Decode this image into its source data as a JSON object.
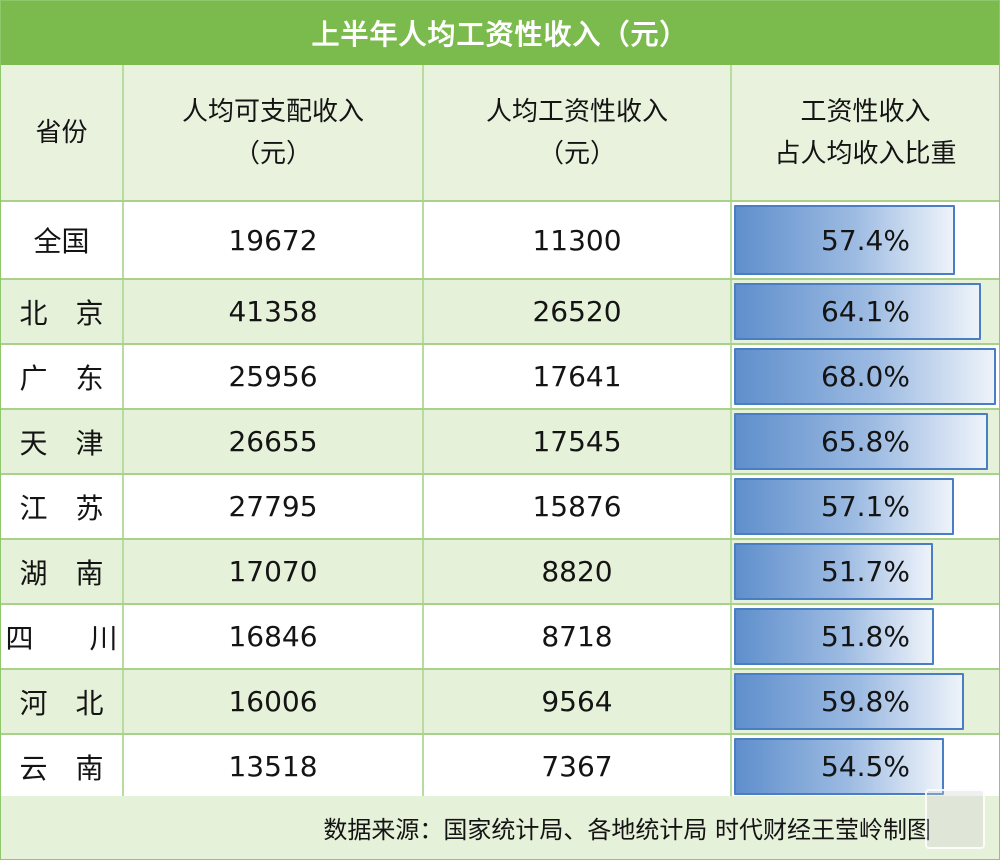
{
  "title": "上半年人均工资性收入（元）",
  "headers": [
    {
      "lines": [
        "省份"
      ]
    },
    {
      "lines": [
        "人均可支配收入",
        "（元）"
      ]
    },
    {
      "lines": [
        "人均工资性收入",
        "（元）"
      ]
    },
    {
      "lines": [
        "工资性收入",
        "占人均收入比重"
      ]
    }
  ],
  "chart_data": {
    "type": "table",
    "columns": [
      "省份",
      "人均可支配收入（元）",
      "人均工资性收入（元）",
      "工资性收入占人均收入比重"
    ],
    "rows": [
      {
        "province": "全国",
        "disposable": "19672",
        "wage": "11300",
        "share": 57.4,
        "share_label": "57.4%"
      },
      {
        "province": "北　京",
        "disposable": "41358",
        "wage": "26520",
        "share": 64.1,
        "share_label": "64.1%"
      },
      {
        "province": "广　东",
        "disposable": "25956",
        "wage": "17641",
        "share": 68.0,
        "share_label": "68.0%"
      },
      {
        "province": "天　津",
        "disposable": "26655",
        "wage": "17545",
        "share": 65.8,
        "share_label": "65.8%"
      },
      {
        "province": "江　苏",
        "disposable": "27795",
        "wage": "15876",
        "share": 57.1,
        "share_label": "57.1%"
      },
      {
        "province": "湖　南",
        "disposable": "17070",
        "wage": "8820",
        "share": 51.7,
        "share_label": "51.7%"
      },
      {
        "province": "四　　川",
        "disposable": "16846",
        "wage": "8718",
        "share": 51.8,
        "share_label": "51.8%"
      },
      {
        "province": "河　北",
        "disposable": "16006",
        "wage": "9564",
        "share": 59.8,
        "share_label": "59.8%"
      },
      {
        "province": "云　南",
        "disposable": "13518",
        "wage": "7367",
        "share": 54.5,
        "share_label": "54.5%"
      }
    ],
    "bar_scale_max": 68.0,
    "bar_color": "#5f8fcc"
  },
  "footer": "数据来源：国家统计局、各地统计局 时代财经王莹岭制图",
  "colors": {
    "title_bg": "#7bba4c",
    "band": "#e6f1da",
    "border": "#a8d28a"
  }
}
